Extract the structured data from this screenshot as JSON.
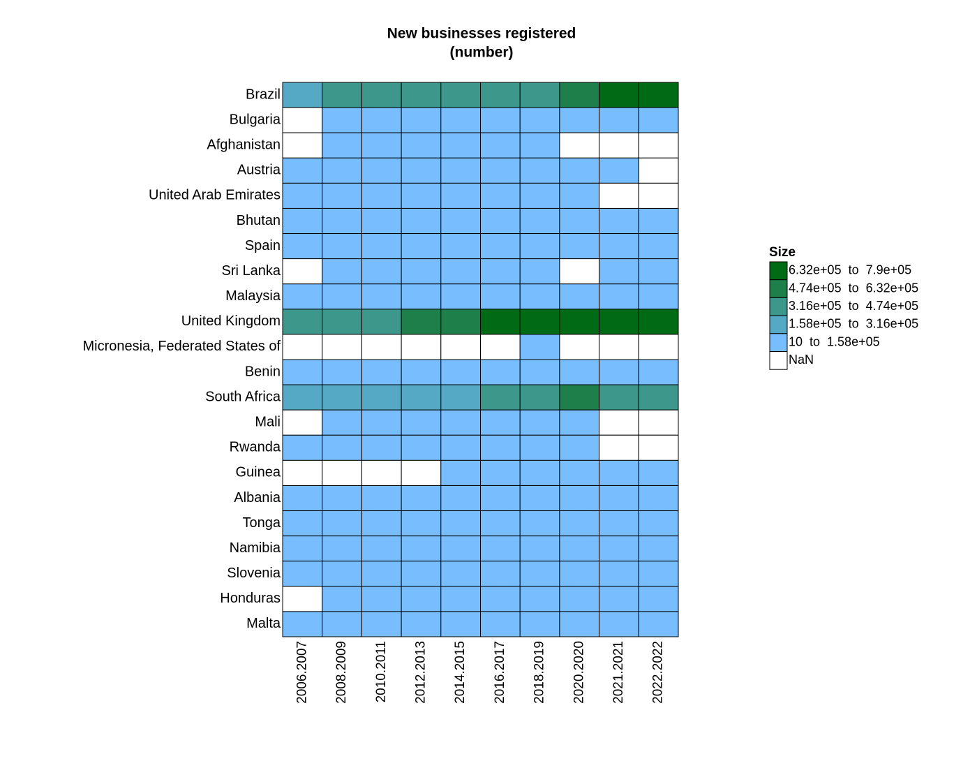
{
  "chart_data": {
    "type": "heatmap",
    "title": "New businesses registered",
    "subtitle": "(number)",
    "categories": [
      "2006.2007",
      "2008.2009",
      "2010.2011",
      "2012.2013",
      "2014.2015",
      "2016.2017",
      "2018.2019",
      "2020.2020",
      "2021.2021",
      "2022.2022"
    ],
    "rows": [
      "Brazil",
      "Bulgaria",
      "Afghanistan",
      "Austria",
      "United Arab Emirates",
      "Bhutan",
      "Spain",
      "Sri Lanka",
      "Malaysia",
      "United Kingdom",
      "Micronesia, Federated States of",
      "Benin",
      "South Africa",
      "Mali",
      "Rwanda",
      "Guinea",
      "Albania",
      "Tonga",
      "Namibia",
      "Slovenia",
      "Honduras",
      "Malta"
    ],
    "values": [
      [
        250000,
        380000,
        400000,
        410000,
        420000,
        430000,
        440000,
        560000,
        720000,
        760000
      ],
      [
        null,
        50000,
        40000,
        38000,
        42000,
        45000,
        48000,
        52000,
        55000,
        57000
      ],
      [
        null,
        8000,
        7000,
        6000,
        5000,
        4000,
        3000,
        null,
        null,
        null
      ],
      [
        35000,
        36000,
        37000,
        38000,
        38000,
        39000,
        40000,
        41000,
        42000,
        null
      ],
      [
        20000,
        22000,
        24000,
        25000,
        26000,
        27000,
        28000,
        29000,
        null,
        null
      ],
      [
        2000,
        2100,
        2200,
        2300,
        2400,
        2500,
        2600,
        2700,
        2800,
        2900
      ],
      [
        100000,
        95000,
        90000,
        92000,
        94000,
        96000,
        98000,
        90000,
        100000,
        105000
      ],
      [
        null,
        6000,
        7000,
        8000,
        9000,
        10000,
        11000,
        null,
        12000,
        13000
      ],
      [
        40000,
        42000,
        44000,
        46000,
        48000,
        50000,
        52000,
        54000,
        56000,
        58000
      ],
      [
        330000,
        350000,
        380000,
        480000,
        560000,
        640000,
        680000,
        700000,
        740000,
        780000
      ],
      [
        null,
        null,
        null,
        null,
        null,
        null,
        100,
        null,
        null,
        null
      ],
      [
        1000,
        1200,
        1400,
        1600,
        1800,
        2000,
        2200,
        2400,
        2600,
        2800
      ],
      [
        200000,
        210000,
        220000,
        230000,
        240000,
        330000,
        360000,
        500000,
        400000,
        420000
      ],
      [
        null,
        3000,
        3500,
        4000,
        4500,
        5000,
        5500,
        6000,
        null,
        null
      ],
      [
        3000,
        3500,
        4000,
        4500,
        5000,
        5500,
        6000,
        6500,
        null,
        null
      ],
      [
        null,
        null,
        null,
        null,
        1000,
        1100,
        1200,
        1300,
        1400,
        1500
      ],
      [
        5000,
        5200,
        5400,
        5600,
        5800,
        6000,
        6200,
        6400,
        6600,
        6800
      ],
      [
        100,
        110,
        120,
        130,
        140,
        150,
        160,
        170,
        180,
        190
      ],
      [
        3000,
        3200,
        3400,
        3600,
        3800,
        4000,
        4200,
        4400,
        4600,
        4800
      ],
      [
        5000,
        5200,
        5400,
        5600,
        5800,
        6000,
        6200,
        6400,
        6600,
        6800
      ],
      [
        null,
        2000,
        2200,
        2400,
        2600,
        2800,
        3000,
        3200,
        3400,
        3600
      ],
      [
        1500,
        1600,
        1700,
        1800,
        1900,
        2000,
        2100,
        2200,
        2300,
        2400
      ]
    ],
    "legend_title": "Size",
    "legend": [
      {
        "label": "6.32e+05  to  7.9e+05",
        "color": "#006b14",
        "range": [
          632000,
          790000
        ]
      },
      {
        "label": "4.74e+05  to  6.32e+05",
        "color": "#1f7f4b",
        "range": [
          474000,
          632000
        ]
      },
      {
        "label": "3.16e+05  to  4.74e+05",
        "color": "#3d978a",
        "range": [
          316000,
          474000
        ]
      },
      {
        "label": "1.58e+05  to  3.16e+05",
        "color": "#56a9c4",
        "range": [
          158000,
          316000
        ]
      },
      {
        "label": "10  to  1.58e+05",
        "color": "#78bdfd",
        "range": [
          10,
          158000
        ]
      },
      {
        "label": "NaN",
        "color": "#ffffff"
      }
    ]
  }
}
